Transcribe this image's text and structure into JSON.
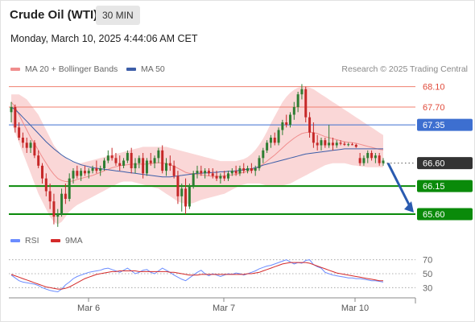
{
  "header": {
    "title": "Crude Oil (WTI)",
    "timeframe": "30 MIN",
    "datetime": "Monday, March 10, 2025 4:44:06 AM CET"
  },
  "legend": {
    "ma20_label": "MA 20 + Bollinger Bands",
    "ma50_label": "MA 50",
    "research": "Research © 2025 Trading Central",
    "rsi_label": "RSI",
    "ma9_label": "9MA"
  },
  "colors": {
    "ma20": "#f08d8d",
    "ma50": "#3d5ea8",
    "bollinger_fill": "#f8caca",
    "bull_candle": "#2e7d32",
    "bear_candle": "#c62828",
    "support": "#0a8a0a",
    "resistance": "#f07f6f",
    "pivot": "#3d6fd0",
    "current": "#333333",
    "arrow": "#2a5bb0",
    "rsi": "#6b8cff",
    "rsi_ma": "#d42a2a"
  },
  "chart_data": [
    {
      "type": "candlestick",
      "title": "Crude Oil (WTI)",
      "timeframe": "30 MIN",
      "x_ticks": [
        "Mar 6",
        "Mar 7",
        "Mar 10"
      ],
      "y_range": [
        65.3,
        68.3
      ],
      "levels": [
        {
          "value": 68.1,
          "label": "68.10",
          "kind": "resistance"
        },
        {
          "value": 67.7,
          "label": "67.70",
          "kind": "resistance"
        },
        {
          "value": 67.35,
          "label": "67.35",
          "kind": "pivot"
        },
        {
          "value": 66.6,
          "label": "66.60",
          "kind": "current"
        },
        {
          "value": 66.15,
          "label": "66.15",
          "kind": "support"
        },
        {
          "value": 65.6,
          "label": "65.60",
          "kind": "support"
        }
      ],
      "candles": [
        [
          67.6,
          67.8,
          67.4,
          67.7
        ],
        [
          67.7,
          67.75,
          67.2,
          67.3
        ],
        [
          67.3,
          67.4,
          67.05,
          67.1
        ],
        [
          67.1,
          67.2,
          66.9,
          67.0
        ],
        [
          67.0,
          67.1,
          66.8,
          66.9
        ],
        [
          66.9,
          67.05,
          66.8,
          67.0
        ],
        [
          67.0,
          67.05,
          66.7,
          66.75
        ],
        [
          66.75,
          66.85,
          66.5,
          66.55
        ],
        [
          66.55,
          66.6,
          66.2,
          66.3
        ],
        [
          66.3,
          66.4,
          65.95,
          66.05
        ],
        [
          66.05,
          66.2,
          65.7,
          65.85
        ],
        [
          65.85,
          66.0,
          65.4,
          65.55
        ],
        [
          65.55,
          65.7,
          65.35,
          65.6
        ],
        [
          65.6,
          66.1,
          65.55,
          66.0
        ],
        [
          66.0,
          66.2,
          65.8,
          65.9
        ],
        [
          65.9,
          66.4,
          65.85,
          66.3
        ],
        [
          66.3,
          66.5,
          66.2,
          66.45
        ],
        [
          66.45,
          66.55,
          66.3,
          66.35
        ],
        [
          66.35,
          66.5,
          66.25,
          66.45
        ],
        [
          66.45,
          66.55,
          66.35,
          66.4
        ],
        [
          66.4,
          66.5,
          66.3,
          66.45
        ],
        [
          66.45,
          66.55,
          66.4,
          66.5
        ],
        [
          66.5,
          66.65,
          66.4,
          66.45
        ],
        [
          66.45,
          66.55,
          66.35,
          66.5
        ],
        [
          66.5,
          66.7,
          66.45,
          66.65
        ],
        [
          66.65,
          66.85,
          66.6,
          66.75
        ],
        [
          66.75,
          66.9,
          66.65,
          66.7
        ],
        [
          66.7,
          66.8,
          66.55,
          66.6
        ],
        [
          66.6,
          66.75,
          66.45,
          66.55
        ],
        [
          66.55,
          66.7,
          66.5,
          66.65
        ],
        [
          66.65,
          66.85,
          66.6,
          66.8
        ],
        [
          66.8,
          66.9,
          66.4,
          66.5
        ],
        [
          66.5,
          66.7,
          66.4,
          66.6
        ],
        [
          66.6,
          66.75,
          66.5,
          66.7
        ],
        [
          66.7,
          66.8,
          66.3,
          66.4
        ],
        [
          66.4,
          66.7,
          66.35,
          66.65
        ],
        [
          66.65,
          66.8,
          66.55,
          66.6
        ],
        [
          66.6,
          66.75,
          66.5,
          66.7
        ],
        [
          66.7,
          66.9,
          66.6,
          66.85
        ],
        [
          66.85,
          66.95,
          66.4,
          66.45
        ],
        [
          66.45,
          66.7,
          66.35,
          66.6
        ],
        [
          66.6,
          66.75,
          66.45,
          66.55
        ],
        [
          66.55,
          66.65,
          66.3,
          66.35
        ],
        [
          66.35,
          66.45,
          65.8,
          65.95
        ],
        [
          65.95,
          66.2,
          65.65,
          66.1
        ],
        [
          66.1,
          66.3,
          65.6,
          65.75
        ],
        [
          65.75,
          66.2,
          65.7,
          66.15
        ],
        [
          66.15,
          66.45,
          66.1,
          66.4
        ],
        [
          66.4,
          66.55,
          66.3,
          66.45
        ],
        [
          66.45,
          66.55,
          66.35,
          66.4
        ],
        [
          66.4,
          66.5,
          66.3,
          66.45
        ],
        [
          66.45,
          66.5,
          66.35,
          66.4
        ],
        [
          66.4,
          66.5,
          66.3,
          66.35
        ],
        [
          66.35,
          66.45,
          66.25,
          66.3
        ],
        [
          66.3,
          66.4,
          66.2,
          66.35
        ],
        [
          66.35,
          66.45,
          66.25,
          66.3
        ],
        [
          66.3,
          66.45,
          66.25,
          66.4
        ],
        [
          66.4,
          66.5,
          66.35,
          66.45
        ],
        [
          66.45,
          66.55,
          66.35,
          66.4
        ],
        [
          66.4,
          66.55,
          66.35,
          66.5
        ],
        [
          66.5,
          66.6,
          66.4,
          66.45
        ],
        [
          66.45,
          66.55,
          66.4,
          66.5
        ],
        [
          66.5,
          66.6,
          66.4,
          66.45
        ],
        [
          66.45,
          66.55,
          66.35,
          66.5
        ],
        [
          66.5,
          66.75,
          66.45,
          66.7
        ],
        [
          66.7,
          66.9,
          66.6,
          66.85
        ],
        [
          66.85,
          67.05,
          66.8,
          67.0
        ],
        [
          67.0,
          67.15,
          66.9,
          67.1
        ],
        [
          67.1,
          67.2,
          66.95,
          67.0
        ],
        [
          67.0,
          67.3,
          66.95,
          67.25
        ],
        [
          67.25,
          67.45,
          67.15,
          67.4
        ],
        [
          67.4,
          67.55,
          67.3,
          67.35
        ],
        [
          67.35,
          67.6,
          67.3,
          67.55
        ],
        [
          67.55,
          67.8,
          67.45,
          67.7
        ],
        [
          67.7,
          68.0,
          67.6,
          67.95
        ],
        [
          67.95,
          68.15,
          67.85,
          68.05
        ],
        [
          68.05,
          68.1,
          67.4,
          67.5
        ],
        [
          67.5,
          67.6,
          67.1,
          67.2
        ],
        [
          67.2,
          67.4,
          66.9,
          67.0
        ],
        [
          67.0,
          67.15,
          66.85,
          66.95
        ],
        [
          66.95,
          67.1,
          66.85,
          67.05
        ],
        [
          67.05,
          67.1,
          66.9,
          66.95
        ],
        [
          66.95,
          67.35,
          66.9,
          67.0
        ],
        [
          67.0,
          67.1,
          66.85,
          66.95
        ],
        [
          66.95,
          67.05,
          66.9,
          67.0
        ],
        [
          67.0,
          67.05,
          66.95,
          66.98
        ],
        [
          66.98,
          67.02,
          66.94,
          66.96
        ],
        [
          66.96,
          67.0,
          66.93,
          66.97
        ],
        [
          66.97,
          67.0,
          66.95,
          66.96
        ],
        [
          66.96,
          66.98,
          66.9,
          66.92
        ],
        [
          66.7,
          66.8,
          66.55,
          66.6
        ],
        [
          66.6,
          66.75,
          66.55,
          66.7
        ],
        [
          66.7,
          66.85,
          66.6,
          66.8
        ],
        [
          66.8,
          66.85,
          66.65,
          66.7
        ],
        [
          66.7,
          66.8,
          66.6,
          66.75
        ],
        [
          66.75,
          66.8,
          66.55,
          66.6
        ],
        [
          66.6,
          66.7,
          66.55,
          66.65
        ]
      ],
      "ma20": [
        67.8,
        67.7,
        67.55,
        67.4,
        67.25,
        67.1,
        66.98,
        66.85,
        66.72,
        66.6,
        66.48,
        66.38,
        66.3,
        66.26,
        66.24,
        66.24,
        66.25,
        66.28,
        66.3,
        66.32,
        66.34,
        66.36,
        66.39,
        66.42,
        66.45,
        66.48,
        66.51,
        66.53,
        66.55,
        66.56,
        66.57,
        66.58,
        66.58,
        66.58,
        66.58,
        66.58,
        66.59,
        66.6,
        66.61,
        66.6,
        66.59,
        66.57,
        66.54,
        66.5,
        66.46,
        66.42,
        66.4,
        66.39,
        66.38,
        66.37,
        66.36,
        66.35,
        66.34,
        66.34,
        66.34,
        66.35,
        66.36,
        66.37,
        66.38,
        66.4,
        66.42,
        66.44,
        66.46,
        66.49,
        66.53,
        66.58,
        66.64,
        66.7,
        66.76,
        66.83,
        66.9,
        66.97,
        67.03,
        67.09,
        67.14,
        67.18,
        67.2,
        67.21,
        67.2,
        67.18,
        67.15,
        67.12,
        67.1,
        67.08,
        67.06,
        67.04,
        67.02,
        67.01,
        67.0,
        66.99,
        66.97,
        66.95,
        66.93,
        66.91,
        66.89,
        66.87,
        66.86
      ],
      "bb_upper": [
        67.95,
        67.95,
        67.95,
        67.9,
        67.85,
        67.75,
        67.65,
        67.55,
        67.4,
        67.25,
        67.1,
        66.95,
        66.85,
        66.75,
        66.7,
        66.65,
        66.62,
        66.6,
        66.6,
        66.62,
        66.64,
        66.66,
        66.68,
        66.7,
        66.72,
        66.74,
        66.76,
        66.78,
        66.8,
        66.82,
        66.84,
        66.86,
        66.88,
        66.9,
        66.92,
        66.92,
        66.92,
        66.92,
        66.92,
        66.92,
        66.92,
        66.9,
        66.88,
        66.86,
        66.84,
        66.82,
        66.8,
        66.78,
        66.76,
        66.74,
        66.72,
        66.7,
        66.68,
        66.66,
        66.64,
        66.64,
        66.64,
        66.64,
        66.64,
        66.66,
        66.68,
        66.72,
        66.78,
        66.86,
        66.96,
        67.08,
        67.22,
        67.38,
        67.52,
        67.66,
        67.8,
        67.9,
        67.98,
        68.04,
        68.08,
        68.1,
        68.1,
        68.08,
        68.05,
        68.0,
        67.95,
        67.9,
        67.85,
        67.8,
        67.75,
        67.7,
        67.65,
        67.6,
        67.55,
        67.5,
        67.45,
        67.4,
        67.35,
        67.3,
        67.25,
        67.2,
        67.15
      ],
      "bb_lower": [
        67.4,
        67.2,
        67.0,
        66.8,
        66.6,
        66.4,
        66.2,
        66.0,
        65.85,
        65.7,
        65.55,
        65.45,
        65.4,
        65.45,
        65.55,
        65.65,
        65.72,
        65.78,
        65.82,
        65.86,
        65.9,
        65.94,
        65.98,
        66.02,
        66.06,
        66.1,
        66.14,
        66.18,
        66.22,
        66.24,
        66.24,
        66.24,
        66.22,
        66.2,
        66.18,
        66.16,
        66.14,
        66.12,
        66.1,
        66.05,
        66.0,
        65.95,
        65.9,
        65.85,
        65.82,
        65.8,
        65.8,
        65.82,
        65.85,
        65.88,
        65.9,
        65.92,
        65.94,
        65.96,
        65.98,
        66.0,
        66.04,
        66.08,
        66.12,
        66.16,
        66.18,
        66.2,
        66.2,
        66.2,
        66.2,
        66.18,
        66.16,
        66.14,
        66.14,
        66.14,
        66.16,
        66.18,
        66.2,
        66.24,
        66.28,
        66.32,
        66.36,
        66.4,
        66.44,
        66.48,
        66.52,
        66.56,
        66.58,
        66.6,
        66.6,
        66.6,
        66.6,
        66.58,
        66.56,
        66.55,
        66.54,
        66.53,
        66.52,
        66.52,
        66.52,
        66.52,
        66.52
      ],
      "ma50": [
        67.7,
        67.65,
        67.58,
        67.5,
        67.42,
        67.34,
        67.26,
        67.18,
        67.1,
        67.02,
        66.95,
        66.88,
        66.82,
        66.76,
        66.71,
        66.67,
        66.63,
        66.6,
        66.57,
        66.55,
        66.53,
        66.51,
        66.5,
        66.49,
        66.48,
        66.47,
        66.46,
        66.45,
        66.44,
        66.43,
        66.42,
        66.41,
        66.4,
        66.39,
        66.38,
        66.37,
        66.36,
        66.35,
        66.34,
        66.33,
        66.33,
        66.33,
        66.34,
        66.35,
        66.36,
        66.37,
        66.38,
        66.39,
        66.4,
        66.4,
        66.41,
        66.41,
        66.42,
        66.42,
        66.43,
        66.43,
        66.44,
        66.44,
        66.45,
        66.46,
        66.47,
        66.48,
        66.49,
        66.51,
        66.53,
        66.56,
        66.58,
        66.6,
        66.62,
        66.64,
        66.66,
        66.68,
        66.7,
        66.72,
        66.74,
        66.76,
        66.78,
        66.79,
        66.8,
        66.81,
        66.82,
        66.83,
        66.84,
        66.85,
        66.86,
        66.87,
        66.88,
        66.88,
        66.88,
        66.88,
        66.88,
        66.88,
        66.88,
        66.88,
        66.88,
        66.88,
        66.88
      ],
      "projection": {
        "from": 66.6,
        "to": 65.6
      }
    },
    {
      "type": "line",
      "title": "RSI",
      "y_ticks": [
        70,
        50,
        30
      ],
      "y_range": [
        20,
        80
      ],
      "series": [
        {
          "name": "RSI",
          "values": [
            48,
            44,
            40,
            38,
            37,
            36,
            35,
            33,
            30,
            28,
            26,
            25,
            24,
            28,
            34,
            38,
            43,
            46,
            48,
            50,
            52,
            53,
            54,
            55,
            57,
            58,
            56,
            54,
            52,
            55,
            58,
            54,
            50,
            52,
            55,
            56,
            52,
            50,
            54,
            58,
            55,
            52,
            48,
            45,
            42,
            40,
            44,
            48,
            52,
            55,
            50,
            47,
            50,
            48,
            46,
            48,
            50,
            49,
            51,
            50,
            48,
            50,
            52,
            54,
            57,
            59,
            61,
            62,
            64,
            66,
            68,
            70,
            67,
            64,
            66,
            65,
            69,
            70,
            63,
            60,
            58,
            52,
            50,
            48,
            47,
            46,
            45,
            44,
            44,
            43,
            43,
            42,
            41,
            40,
            40,
            39,
            38
          ]
        },
        {
          "name": "9MA",
          "values": [
            49,
            47,
            45,
            43,
            41,
            39,
            37,
            35,
            33,
            31,
            30,
            29,
            28,
            28,
            29,
            31,
            34,
            37,
            40,
            43,
            45,
            47,
            49,
            50,
            51,
            52,
            53,
            53,
            54,
            54,
            54,
            54,
            54,
            53,
            53,
            53,
            53,
            53,
            53,
            53,
            53,
            52,
            52,
            51,
            50,
            49,
            48,
            48,
            48,
            49,
            49,
            49,
            49,
            49,
            49,
            49,
            49,
            49,
            49,
            49,
            49,
            50,
            50,
            51,
            52,
            54,
            56,
            58,
            60,
            62,
            64,
            65,
            66,
            66,
            66,
            66,
            66,
            65,
            63,
            61,
            59,
            57,
            55,
            53,
            51,
            50,
            49,
            48,
            47,
            46,
            45,
            44,
            43,
            42,
            41,
            40,
            40
          ]
        }
      ]
    }
  ]
}
